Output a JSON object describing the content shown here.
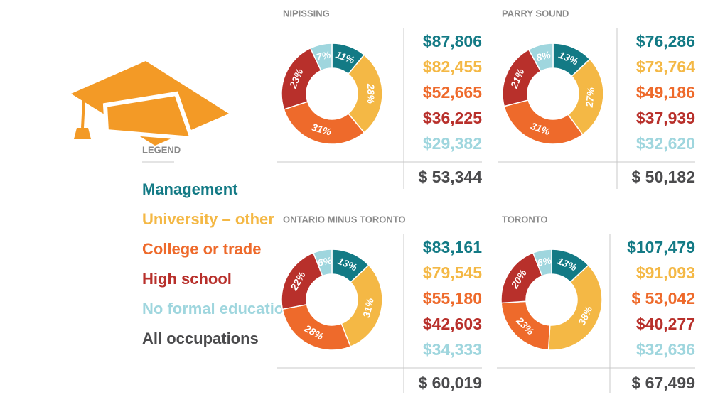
{
  "legend": {
    "title": "LEGEND",
    "items": [
      {
        "name": "Management",
        "color": "#137a85"
      },
      {
        "name": "University – other",
        "color": "#f4b845"
      },
      {
        "name": "College or trade",
        "color": "#ee6a2b"
      },
      {
        "name": "High school",
        "color": "#b8302b"
      },
      {
        "name": "No formal education",
        "color": "#9fd6de"
      },
      {
        "name": "All occupations",
        "color": "#4b4b4d"
      }
    ]
  },
  "chart_data": [
    {
      "type": "donut",
      "title": "NIPISSING",
      "values": [
        11,
        28,
        31,
        23,
        7
      ],
      "value_labels": [
        "11%",
        "28%",
        "31%",
        "23%",
        "7%"
      ],
      "incomes": [
        87806,
        82455,
        52665,
        36225,
        29382
      ],
      "income_labels": [
        "$87,806",
        "$82,455",
        "$52,665",
        "$36,225",
        "$29,382"
      ],
      "total": 53344,
      "total_label": "$ 53,344"
    },
    {
      "type": "donut",
      "title": "PARRY SOUND",
      "values": [
        13,
        27,
        31,
        21,
        8
      ],
      "value_labels": [
        "13%",
        "27%",
        "31%",
        "21%",
        "8%"
      ],
      "incomes": [
        76286,
        73764,
        49186,
        37939,
        32620
      ],
      "income_labels": [
        "$76,286",
        "$73,764",
        "$49,186",
        "$37,939",
        "$32,620"
      ],
      "total": 50182,
      "total_label": "$ 50,182"
    },
    {
      "type": "donut",
      "title": "ONTARIO MINUS TORONTO",
      "values": [
        13,
        31,
        28,
        22,
        6
      ],
      "value_labels": [
        "13%",
        "31%",
        "28%",
        "22%",
        "6%"
      ],
      "incomes": [
        83161,
        79545,
        55180,
        42603,
        34333
      ],
      "income_labels": [
        "$83,161",
        "$79,545",
        "$55,180",
        "$42,603",
        "$34,333"
      ],
      "total": 60019,
      "total_label": "$ 60,019"
    },
    {
      "type": "donut",
      "title": "TORONTO",
      "values": [
        13,
        38,
        23,
        20,
        6
      ],
      "value_labels": [
        "13%",
        "38%",
        "23%",
        "20%",
        "6%"
      ],
      "incomes": [
        107479,
        91093,
        53042,
        40277,
        32636
      ],
      "income_labels": [
        "$107,479",
        "$91,093",
        "$ 53,042",
        "$40,277",
        "$32,636"
      ],
      "total": 67499,
      "total_label": "$ 67,499"
    }
  ]
}
